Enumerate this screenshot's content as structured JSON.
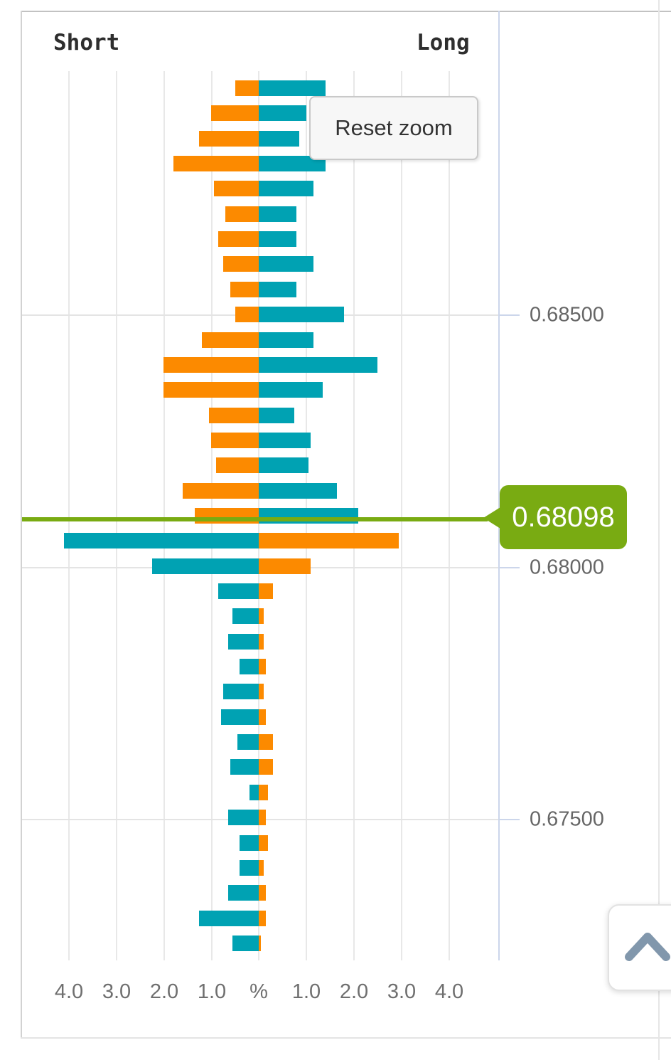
{
  "header": {},
  "buttons": {
    "reset_zoom_label": "Reset zoom"
  },
  "price_axis": {
    "current_price_label": "0.68098"
  },
  "colors": {
    "orange": "#fc8a00",
    "teal": "#00a2b3",
    "price_line_green": "#79ab12",
    "axis_line": "#ccd6eb",
    "gridline": "#e8e8e8",
    "chevron": "#8197ac"
  },
  "chart_data": {
    "type": "bar",
    "subtype": "diverging-horizontal-open-positions",
    "title": "",
    "xlabel": "%",
    "legend": {
      "left": "Short",
      "right": "Long"
    },
    "xlim": [
      -5,
      5
    ],
    "x_gridline_step": 1.0,
    "x_tick_labels": [
      "4.0",
      "3.0",
      "2.0",
      "1.0",
      "%",
      "1.0",
      "2.0",
      "3.0",
      "4.0"
    ],
    "y_axis": {
      "side": "right",
      "tick_labels": [
        "0.68500",
        "0.68000",
        "0.67500"
      ],
      "bucket_size": 0.0005
    },
    "current_price": 0.68098,
    "color_rule": "rows priced above current price: short(left)=orange, long(right)=teal; rows below: short(left)=teal, long(right)=orange",
    "rows": [
      {
        "price": 0.6895,
        "short": 0.5,
        "long": 1.4
      },
      {
        "price": 0.689,
        "short": 1.0,
        "long": 1.0
      },
      {
        "price": 0.6885,
        "short": 1.25,
        "long": 0.85
      },
      {
        "price": 0.688,
        "short": 1.8,
        "long": 1.4
      },
      {
        "price": 0.6875,
        "short": 0.95,
        "long": 1.15
      },
      {
        "price": 0.687,
        "short": 0.7,
        "long": 0.8
      },
      {
        "price": 0.6865,
        "short": 0.85,
        "long": 0.8
      },
      {
        "price": 0.686,
        "short": 0.75,
        "long": 1.15
      },
      {
        "price": 0.6855,
        "short": 0.6,
        "long": 0.8
      },
      {
        "price": 0.685,
        "short": 0.5,
        "long": 1.8
      },
      {
        "price": 0.6845,
        "short": 1.2,
        "long": 1.15
      },
      {
        "price": 0.684,
        "short": 2.0,
        "long": 2.5
      },
      {
        "price": 0.6835,
        "short": 2.0,
        "long": 1.35
      },
      {
        "price": 0.683,
        "short": 1.05,
        "long": 0.75
      },
      {
        "price": 0.6825,
        "short": 1.0,
        "long": 1.1
      },
      {
        "price": 0.682,
        "short": 0.9,
        "long": 1.05
      },
      {
        "price": 0.6815,
        "short": 1.6,
        "long": 1.65
      },
      {
        "price": 0.681,
        "short": 1.35,
        "long": 2.1
      },
      {
        "price": 0.6805,
        "short": 4.1,
        "long": 2.95
      },
      {
        "price": 0.68,
        "short": 2.25,
        "long": 1.1
      },
      {
        "price": 0.6795,
        "short": 0.85,
        "long": 0.3
      },
      {
        "price": 0.679,
        "short": 0.55,
        "long": 0.1
      },
      {
        "price": 0.6785,
        "short": 0.65,
        "long": 0.1
      },
      {
        "price": 0.678,
        "short": 0.4,
        "long": 0.15
      },
      {
        "price": 0.6775,
        "short": 0.75,
        "long": 0.1
      },
      {
        "price": 0.677,
        "short": 0.8,
        "long": 0.15
      },
      {
        "price": 0.6765,
        "short": 0.45,
        "long": 0.3
      },
      {
        "price": 0.676,
        "short": 0.6,
        "long": 0.3
      },
      {
        "price": 0.6755,
        "short": 0.2,
        "long": 0.2
      },
      {
        "price": 0.675,
        "short": 0.65,
        "long": 0.15
      },
      {
        "price": 0.6745,
        "short": 0.4,
        "long": 0.2
      },
      {
        "price": 0.674,
        "short": 0.4,
        "long": 0.1
      },
      {
        "price": 0.6735,
        "short": 0.65,
        "long": 0.15
      },
      {
        "price": 0.673,
        "short": 1.25,
        "long": 0.15
      },
      {
        "price": 0.6725,
        "short": 0.55,
        "long": 0.05
      }
    ]
  }
}
